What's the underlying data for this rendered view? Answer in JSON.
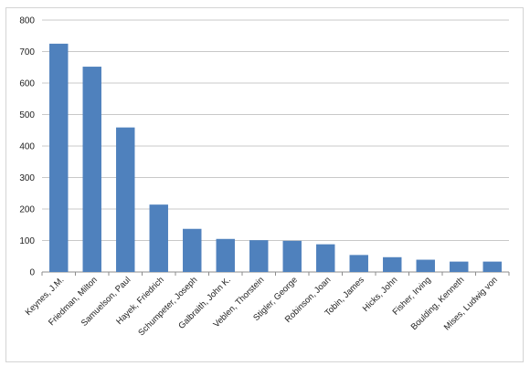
{
  "chart_data": {
    "type": "bar",
    "categories": [
      "Keynes, J.M.",
      "Friedman, Milton",
      "Samuelson, Paul",
      "Hayek, Friedrich",
      "Schumpeter, Joseph",
      "Galbraith, John K.",
      "Veblen, Thorstein",
      "Stigler, George",
      "Robinson, Joan",
      "Tobin, James",
      "Hicks, John",
      "Fisher, Irving",
      "Boulding, Kenneth",
      "Mises, Ludwig von"
    ],
    "values": [
      725,
      652,
      459,
      214,
      137,
      105,
      101,
      99,
      88,
      54,
      47,
      39,
      33,
      33
    ],
    "ylim": [
      0,
      800
    ],
    "yticks": [
      0,
      100,
      200,
      300,
      400,
      500,
      600,
      700,
      800
    ],
    "grid": true,
    "legend": "none",
    "title": "",
    "xlabel": "",
    "ylabel": "",
    "colors": {
      "bar": "#4f81bd",
      "grid": "#c8c8c8",
      "axis": "#8c8c8c"
    }
  }
}
